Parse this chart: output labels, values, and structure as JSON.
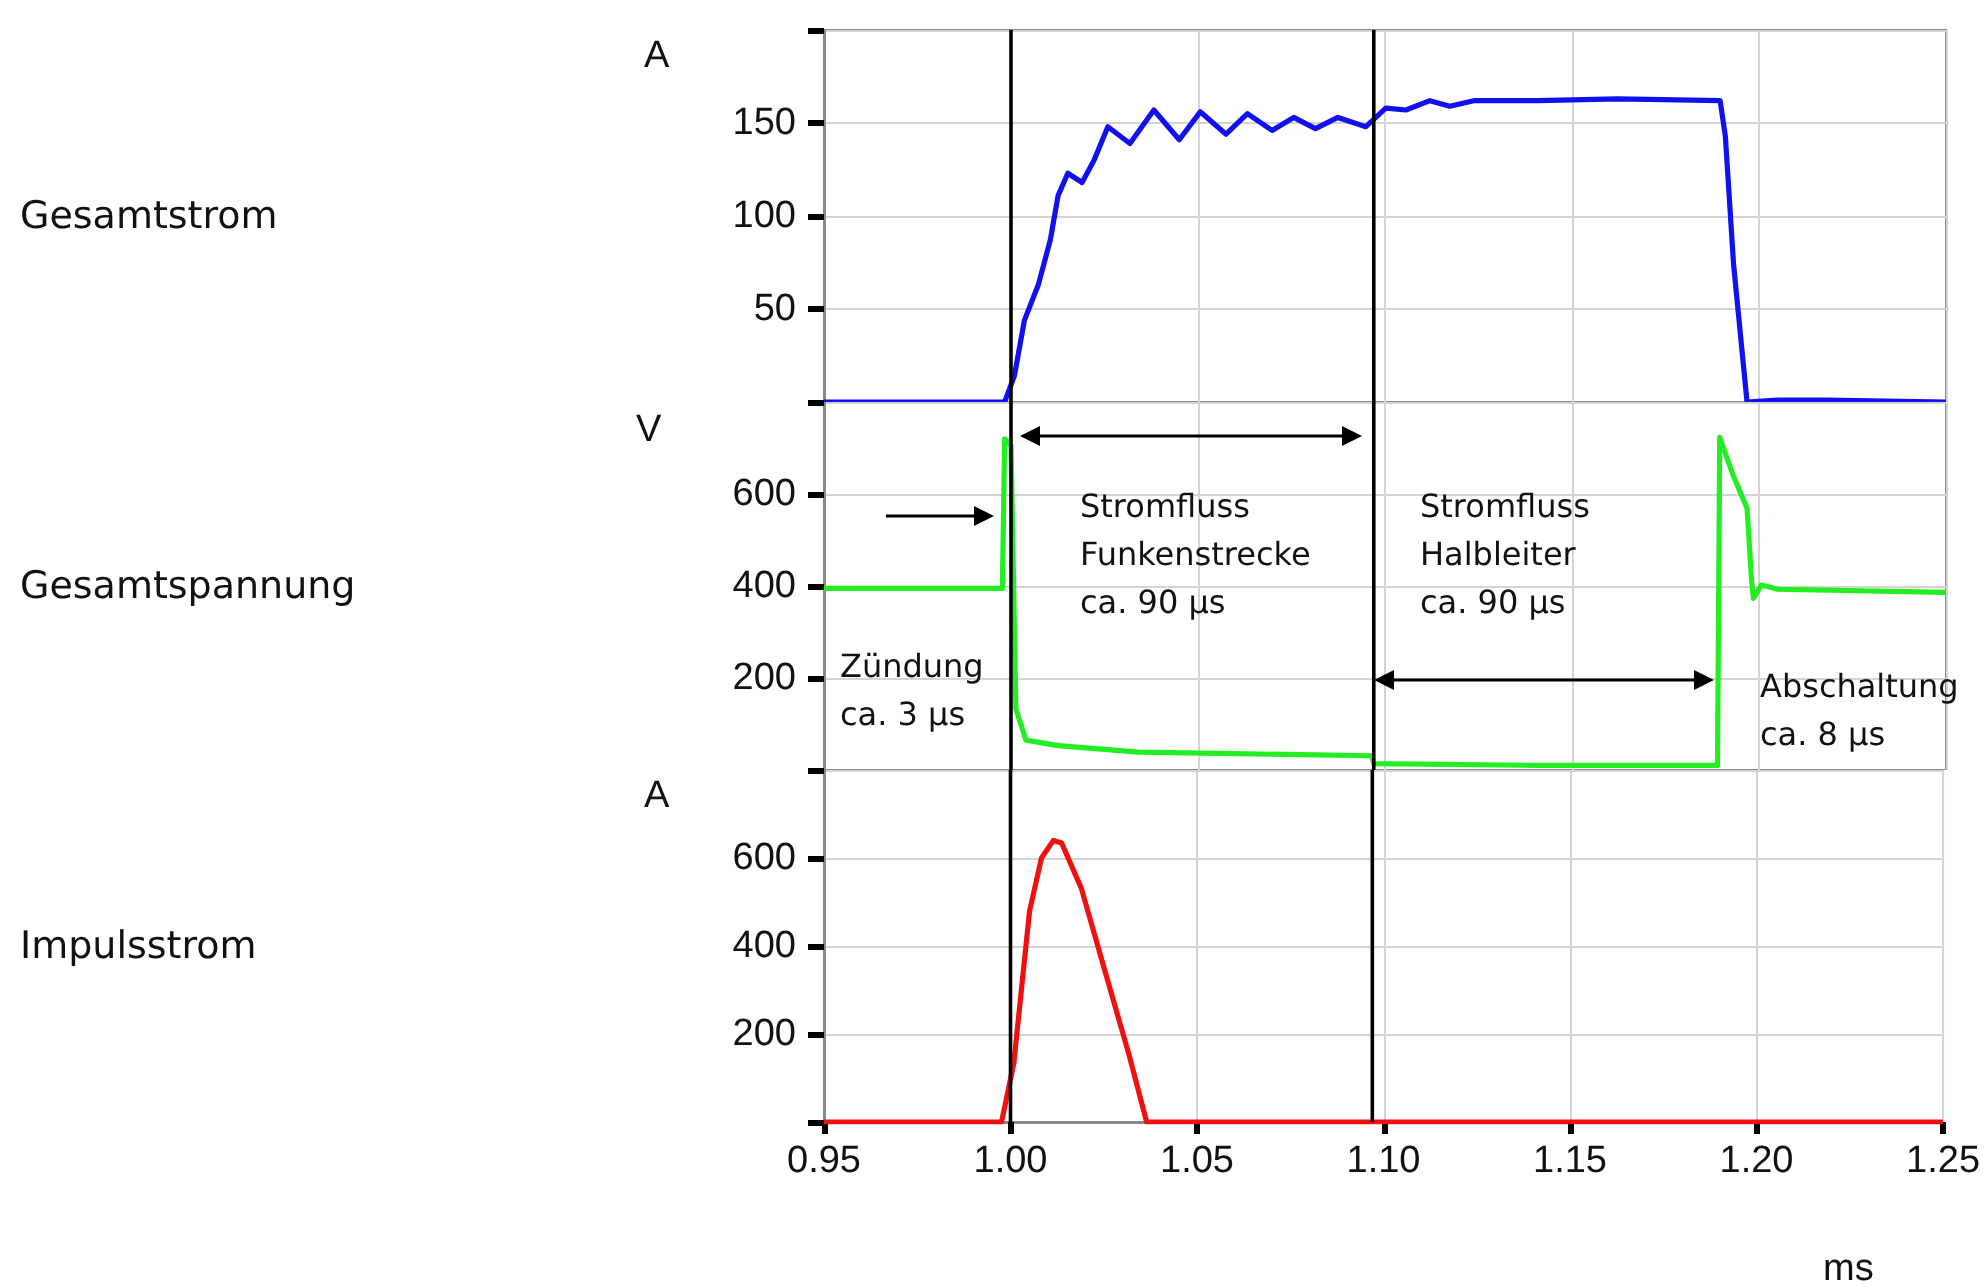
{
  "chart_data": [
    {
      "type": "line",
      "ylabel": "Gesamtstrom",
      "annotations": [
        "A"
      ],
      "series": [
        {
          "color": "#1010f0",
          "x": [
            0.95,
            0.9983,
            1.0009,
            1.0036,
            1.0073,
            1.0105,
            1.0126,
            1.0152,
            1.019,
            1.0222,
            1.0259,
            1.0318,
            1.0382,
            1.045,
            1.0506,
            1.0575,
            1.0632,
            1.0698,
            1.0756,
            1.0814,
            1.0874,
            1.0949,
            1.1002,
            1.1056,
            1.112,
            1.1173,
            1.1237,
            1.1408,
            1.1622,
            1.1896,
            1.191,
            1.1932,
            1.1968,
            1.205,
            1.218,
            1.25
          ],
          "values": [
            0,
            0,
            14,
            44,
            63,
            87,
            111,
            123,
            118,
            130,
            148,
            139,
            157,
            141,
            156,
            144,
            155,
            146,
            153,
            147,
            153,
            148,
            158,
            157,
            162,
            159,
            162,
            162,
            163,
            162,
            143,
            74,
            0,
            1,
            1,
            0
          ]
        }
      ],
      "xlim": [
        0.95,
        1.25
      ],
      "xticks": [
        0.95,
        1,
        1.05,
        1.1,
        1.15,
        1.2,
        1.25
      ],
      "ylim": [
        0,
        200
      ],
      "yticks": [
        {
          "value": 0,
          "label": null
        },
        50,
        100,
        150,
        {
          "value": 200,
          "label": null
        }
      ],
      "ref_lines": [
        {
          "axis": "x",
          "value": 1.0,
          "color": "#000000"
        },
        {
          "axis": "x",
          "value": 1.097,
          "color": "#000000"
        }
      ],
      "grid": true,
      "tick_labels": "y"
    },
    {
      "type": "line",
      "ylabel": "Gesamtspannung",
      "series": [
        {
          "color": "#22ee22",
          "x": [
            0.95,
            0.9977,
            0.9983,
            1.0,
            1.0013,
            1.004,
            1.0126,
            1.034,
            1.0555,
            1.0964,
            1.097,
            1.1408,
            1.1889,
            1.1895,
            1.1932,
            1.1968,
            1.198,
            1.1985,
            1.2006,
            1.205,
            1.25
          ],
          "values": [
            395,
            395,
            720,
            706,
            133,
            65,
            53,
            39,
            36,
            31,
            14,
            10,
            10,
            723,
            638,
            569,
            415,
            373,
            402,
            393,
            386
          ]
        }
      ],
      "xlim": [
        0.95,
        1.25
      ],
      "xticks": [
        0.95,
        1,
        1.05,
        1.1,
        1.15,
        1.2,
        1.25
      ],
      "ylim": [
        0,
        800
      ],
      "yticks": [
        {
          "value": 0,
          "label": null
        },
        200,
        400,
        600,
        {
          "value": 800,
          "label": null
        }
      ],
      "ref_lines": [
        {
          "axis": "x",
          "value": 1.0,
          "color": "#000000"
        },
        {
          "axis": "x",
          "value": 1.097,
          "color": "#000000"
        }
      ],
      "annotations": [
        "V",
        "Zündung\nca. 3 µs",
        "Stromfluss\nFunkenstrecke\nca. 90 µs",
        "Stromfluss\nHalbleiter\nca. 90 µs",
        "Abschaltung\nca. 8 µs"
      ],
      "grid": true,
      "tick_labels": "y"
    },
    {
      "type": "line",
      "ylabel": "Impulsstrom",
      "annotations": [
        "A"
      ],
      "xlabel": "ms",
      "series": [
        {
          "color": "#f01010",
          "x": [
            0.95,
            0.9976,
            1.0009,
            1.003,
            1.0051,
            1.0083,
            1.0115,
            1.0137,
            1.019,
            1.0254,
            1.0318,
            1.0365,
            1.25
          ],
          "values": [
            0,
            0,
            134,
            307,
            479,
            600,
            640,
            634,
            531,
            341,
            152,
            0,
            0
          ]
        }
      ],
      "xlim": [
        0.95,
        1.25
      ],
      "xticks": [
        0.95,
        {
          "value": 1,
          "label": "1.00"
        },
        1.05,
        {
          "value": 1.1,
          "label": "1.10"
        },
        1.15,
        {
          "value": 1.2,
          "label": "1.20"
        },
        1.25
      ],
      "ylim": [
        0,
        800
      ],
      "yticks": [
        {
          "value": 0,
          "label": null
        },
        200,
        400,
        600,
        {
          "value": 800,
          "label": null
        }
      ],
      "ref_lines": [
        {
          "axis": "x",
          "value": 1.0,
          "color": "#000000"
        },
        {
          "axis": "x",
          "value": 1.097,
          "color": "#000000"
        }
      ],
      "grid": true
    }
  ]
}
